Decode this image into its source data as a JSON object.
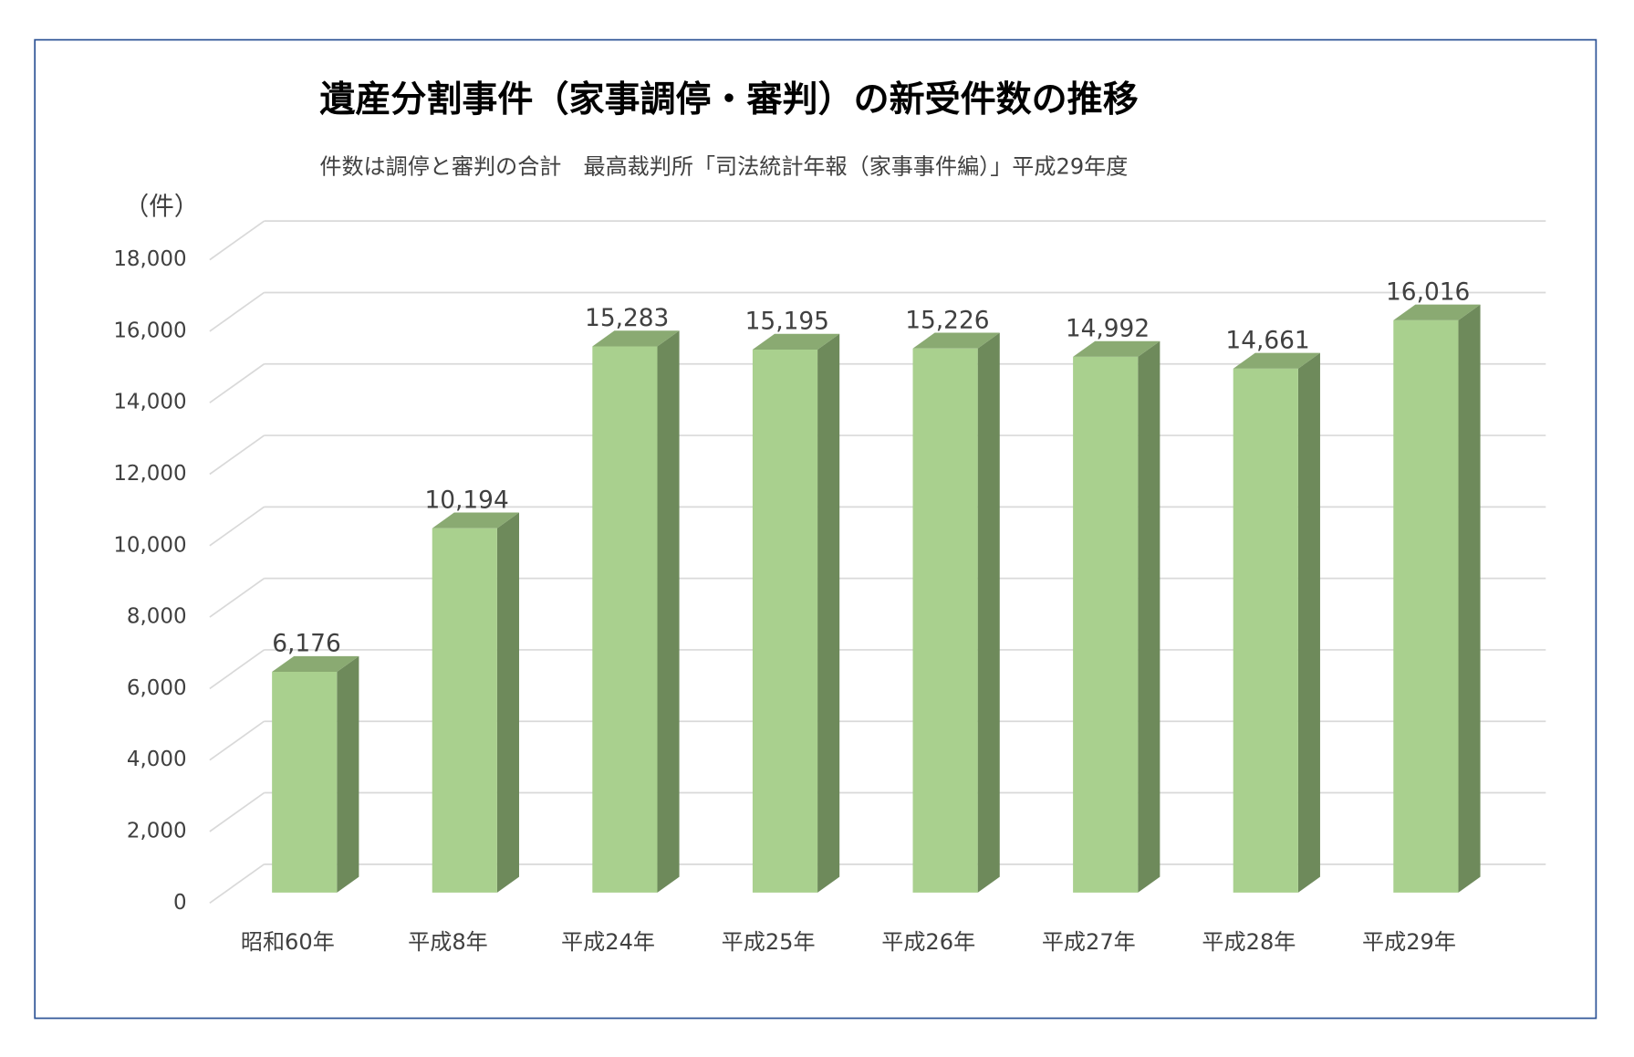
{
  "chart_data": {
    "type": "bar3d",
    "title": "遺産分割事件（家事調停・審判）の新受件数の推移",
    "subtitle": "件数は調停と審判の合計　最高裁判所「司法統計年報（家事事件編）」平成29年度",
    "y_axis_label": "（件）",
    "categories": [
      "昭和60年",
      "平成8年",
      "平成24年",
      "平成25年",
      "平成26年",
      "平成27年",
      "平成28年",
      "平成29年"
    ],
    "values": [
      6176,
      10194,
      15283,
      15195,
      15226,
      14992,
      14661,
      16016
    ],
    "value_labels": [
      "6,176",
      "10,194",
      "15,283",
      "15,195",
      "15,226",
      "14,992",
      "14,661",
      "16,016"
    ],
    "color": "#a9d08e",
    "ylim": [
      0,
      18000
    ],
    "yticks": [
      0,
      {
        "value": 2000,
        "label": "2,000"
      },
      {
        "value": 4000,
        "label": "4,000"
      },
      {
        "value": 6000,
        "label": "6,000"
      },
      {
        "value": 8000,
        "label": "8,000"
      },
      {
        "value": 10000,
        "label": "10,000"
      },
      {
        "value": 12000,
        "label": "12,000"
      },
      {
        "value": 14000,
        "label": "14,000"
      },
      {
        "value": 16000,
        "label": "16,000"
      },
      {
        "value": 18000,
        "label": "18,000"
      }
    ],
    "grid": true
  }
}
